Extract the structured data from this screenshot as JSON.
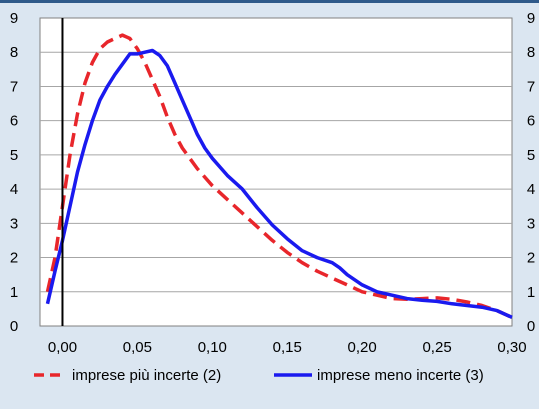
{
  "chart_data": {
    "type": "line",
    "title": "",
    "xlabel": "",
    "ylabel": "",
    "xlim": [
      -0.015,
      0.3
    ],
    "ylim": [
      0,
      9
    ],
    "grid": true,
    "legend_position": "bottom",
    "x_ticks": [
      0.0,
      0.05,
      0.1,
      0.15,
      0.2,
      0.25,
      0.3
    ],
    "x_tick_labels": [
      "0,00",
      "0,05",
      "0,10",
      "0,15",
      "0,20",
      "0,25",
      "0,30"
    ],
    "y_ticks": [
      0,
      1,
      2,
      3,
      4,
      5,
      6,
      7,
      8,
      9
    ],
    "y_tick_labels": [
      "0",
      "1",
      "2",
      "3",
      "4",
      "5",
      "6",
      "7",
      "8",
      "9"
    ],
    "reference_line_x": 0.0,
    "series": [
      {
        "name": "imprese più incerte (2)",
        "color": "#e8262b",
        "style": "dashed",
        "x": [
          -0.01,
          -0.005,
          0.0,
          0.005,
          0.01,
          0.015,
          0.02,
          0.025,
          0.03,
          0.035,
          0.04,
          0.045,
          0.05,
          0.055,
          0.06,
          0.065,
          0.07,
          0.075,
          0.08,
          0.09,
          0.1,
          0.11,
          0.12,
          0.13,
          0.14,
          0.15,
          0.16,
          0.17,
          0.18,
          0.19,
          0.2,
          0.21,
          0.22,
          0.23,
          0.24,
          0.25,
          0.26,
          0.27,
          0.28,
          0.29,
          0.3
        ],
        "y": [
          1.0,
          2.0,
          3.5,
          5.0,
          6.2,
          7.1,
          7.7,
          8.1,
          8.3,
          8.4,
          8.5,
          8.4,
          8.1,
          7.7,
          7.2,
          6.7,
          6.1,
          5.6,
          5.2,
          4.6,
          4.1,
          3.7,
          3.3,
          2.9,
          2.5,
          2.15,
          1.85,
          1.6,
          1.4,
          1.2,
          1.0,
          0.9,
          0.8,
          0.78,
          0.8,
          0.82,
          0.78,
          0.7,
          0.6,
          0.45,
          0.25
        ]
      },
      {
        "name": "imprese meno incerte (3)",
        "color": "#1a1aef",
        "style": "solid",
        "x": [
          -0.01,
          -0.005,
          0.0,
          0.005,
          0.01,
          0.015,
          0.02,
          0.025,
          0.03,
          0.035,
          0.04,
          0.045,
          0.05,
          0.055,
          0.06,
          0.065,
          0.07,
          0.075,
          0.08,
          0.085,
          0.09,
          0.095,
          0.1,
          0.11,
          0.12,
          0.13,
          0.14,
          0.15,
          0.16,
          0.17,
          0.18,
          0.185,
          0.19,
          0.2,
          0.21,
          0.22,
          0.23,
          0.24,
          0.25,
          0.26,
          0.27,
          0.28,
          0.29,
          0.3
        ],
        "y": [
          0.65,
          1.6,
          2.5,
          3.5,
          4.5,
          5.3,
          6.0,
          6.6,
          7.0,
          7.35,
          7.65,
          7.95,
          7.95,
          8.0,
          8.05,
          7.9,
          7.6,
          7.1,
          6.6,
          6.1,
          5.6,
          5.2,
          4.9,
          4.4,
          4.0,
          3.45,
          2.95,
          2.55,
          2.2,
          2.0,
          1.85,
          1.7,
          1.5,
          1.2,
          1.0,
          0.9,
          0.8,
          0.75,
          0.72,
          0.65,
          0.6,
          0.55,
          0.45,
          0.25
        ]
      }
    ]
  }
}
